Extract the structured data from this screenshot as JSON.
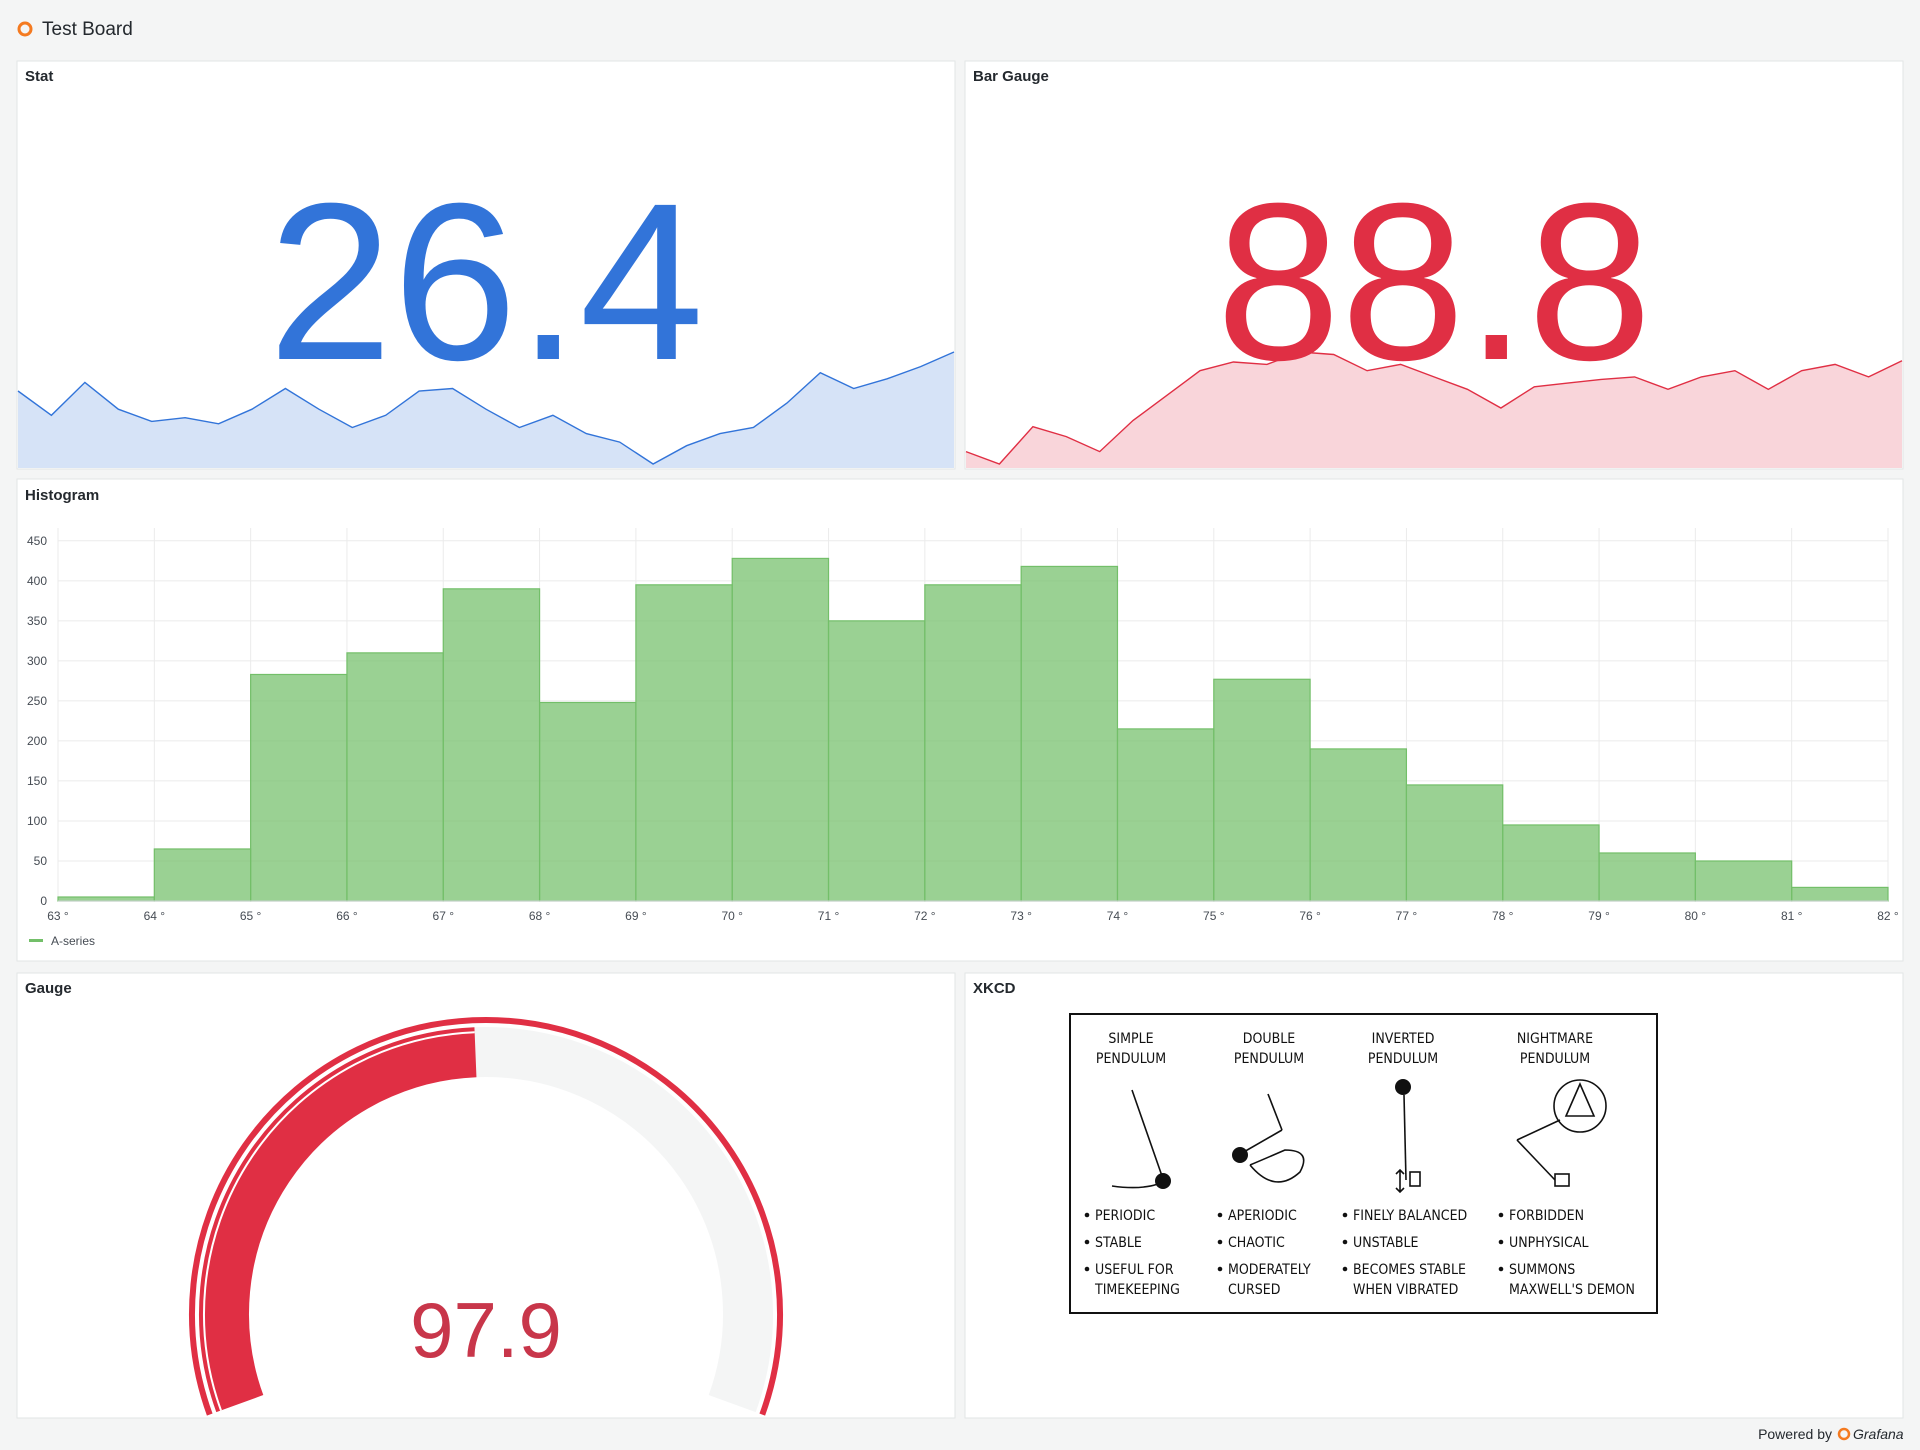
{
  "header": {
    "title": "Test Board"
  },
  "panels": {
    "stat": {
      "title": "Stat",
      "value": 26.4,
      "color": "#3274d9",
      "sparkline": [
        23.2,
        21.2,
        23.9,
        21.7,
        20.7,
        21.0,
        20.5,
        21.7,
        23.4,
        21.7,
        20.2,
        21.2,
        23.2,
        23.4,
        21.7,
        20.2,
        21.2,
        19.7,
        19.0,
        17.2,
        18.7,
        19.7,
        20.2,
        22.2,
        24.7,
        23.4,
        24.2,
        25.2,
        26.4
      ]
    },
    "bar_gauge": {
      "title": "Bar Gauge",
      "value": 88.8,
      "color": "#e02f44",
      "sparkline": [
        66.9,
        63.9,
        72.9,
        70.5,
        66.9,
        74.4,
        80.4,
        86.4,
        88.5,
        87.9,
        90.9,
        90.3,
        86.4,
        87.9,
        84.9,
        81.9,
        77.4,
        82.5,
        83.4,
        84.3,
        84.9,
        81.9,
        84.9,
        86.4,
        81.9,
        86.4,
        87.9,
        84.9,
        88.8
      ]
    },
    "histogram": {
      "title": "Histogram",
      "type": "histogram",
      "bins": [
        63,
        64,
        65,
        66,
        67,
        68,
        69,
        70,
        71,
        72,
        73,
        74,
        75,
        76,
        77,
        78,
        79,
        80,
        81,
        82
      ],
      "counts": [
        5,
        65,
        283,
        310,
        390,
        248,
        395,
        428,
        350,
        395,
        418,
        215,
        277,
        190,
        145,
        95,
        60,
        50,
        17
      ],
      "xlim": [
        63,
        82
      ],
      "xticks": [
        {
          "value": 63,
          "label": "63 °"
        },
        {
          "value": 64,
          "label": "64 °"
        },
        {
          "value": 65,
          "label": "65 °"
        },
        {
          "value": 66,
          "label": "66 °"
        },
        {
          "value": 67,
          "label": "67 °"
        },
        {
          "value": 68,
          "label": "68 °"
        },
        {
          "value": 69,
          "label": "69 °"
        },
        {
          "value": 70,
          "label": "70 °"
        },
        {
          "value": 71,
          "label": "71 °"
        },
        {
          "value": 72,
          "label": "72 °"
        },
        {
          "value": 73,
          "label": "73 °"
        },
        {
          "value": 74,
          "label": "74 °"
        },
        {
          "value": 75,
          "label": "75 °"
        },
        {
          "value": 76,
          "label": "76 °"
        },
        {
          "value": 77,
          "label": "77 °"
        },
        {
          "value": 78,
          "label": "78 °"
        },
        {
          "value": 79,
          "label": "79 °"
        },
        {
          "value": 80,
          "label": "80 °"
        },
        {
          "value": 81,
          "label": "81 °"
        },
        {
          "value": 82,
          "label": "82 °"
        }
      ],
      "ylim": [
        0,
        466
      ],
      "yticks": [
        0,
        50,
        100,
        150,
        200,
        250,
        300,
        350,
        400,
        450
      ],
      "grid": true,
      "series": [
        {
          "name": "A-series",
          "color": "#73bf69"
        }
      ]
    },
    "gauge": {
      "title": "Gauge",
      "value": 97.9,
      "range": [
        0,
        200
      ],
      "color": "#e02f44"
    },
    "xkcd": {
      "title": "XKCD",
      "columns": [
        {
          "title": [
            "SIMPLE",
            "PENDULUM"
          ],
          "bullets": [
            [
              "PERIODIC"
            ],
            [
              "STABLE"
            ],
            [
              "USEFUL FOR",
              "TIMEKEEPING"
            ]
          ]
        },
        {
          "title": [
            "DOUBLE",
            "PENDULUM"
          ],
          "bullets": [
            [
              "APERIODIC"
            ],
            [
              "CHAOTIC"
            ],
            [
              "MODERATELY",
              "CURSED"
            ]
          ]
        },
        {
          "title": [
            "INVERTED",
            "PENDULUM"
          ],
          "bullets": [
            [
              "FINELY BALANCED"
            ],
            [
              "UNSTABLE"
            ],
            [
              "BECOMES STABLE",
              "WHEN VIBRATED"
            ]
          ]
        },
        {
          "title": [
            "NIGHTMARE",
            "PENDULUM"
          ],
          "bullets": [
            [
              "FORBIDDEN"
            ],
            [
              "UNPHYSICAL"
            ],
            [
              "SUMMONS",
              "MAXWELL'S DEMON"
            ]
          ]
        }
      ]
    }
  },
  "footer": {
    "text": "Powered by",
    "brand": "Grafana"
  }
}
